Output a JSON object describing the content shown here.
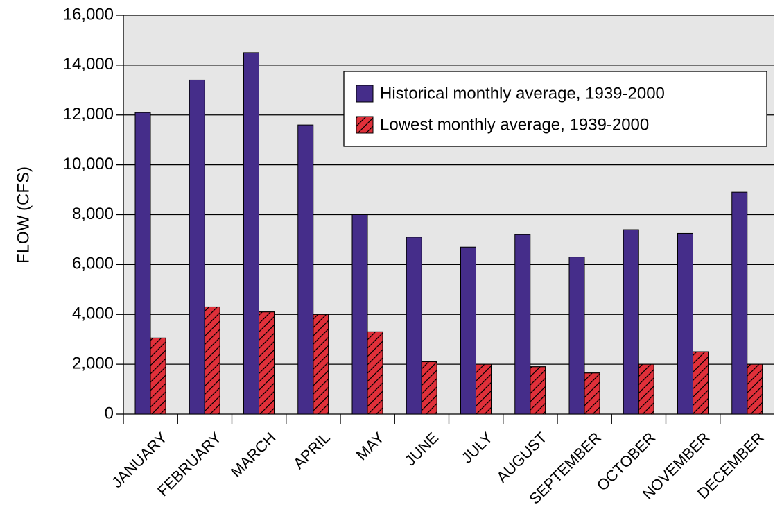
{
  "chart_data": {
    "type": "bar",
    "ylabel": "FLOW (CFS)",
    "categories": [
      "JANUARY",
      "FEBRUARY",
      "MARCH",
      "APRIL",
      "MAY",
      "JUNE",
      "JULY",
      "AUGUST",
      "SEPTEMBER",
      "OCTOBER",
      "NOVEMBER",
      "DECEMBER"
    ],
    "series": [
      {
        "name": "Historical monthly average, 1939-2000",
        "color": "#452d8a",
        "values": [
          12100,
          13400,
          14500,
          11600,
          8000,
          7100,
          6700,
          7200,
          6300,
          7400,
          7250,
          8900
        ]
      },
      {
        "name": "Lowest monthly average, 1939-2000",
        "color": "#e0303a",
        "hatch": "/",
        "values": [
          3050,
          4300,
          4100,
          4000,
          3300,
          2100,
          2000,
          1900,
          1650,
          2000,
          2500,
          2000
        ]
      }
    ],
    "ylim": [
      0,
      16000
    ],
    "yticks": [
      0,
      {
        "value": 2000,
        "label": "2,000"
      },
      {
        "value": 4000,
        "label": "4,000"
      },
      {
        "value": 6000,
        "label": "6,000"
      },
      {
        "value": 8000,
        "label": "8,000"
      },
      {
        "value": 10000,
        "label": "10,000"
      },
      {
        "value": 12000,
        "label": "12,000"
      },
      {
        "value": 14000,
        "label": "14,000"
      },
      {
        "value": 16000,
        "label": "16,000"
      }
    ],
    "grid": true,
    "legend": "upper right"
  }
}
